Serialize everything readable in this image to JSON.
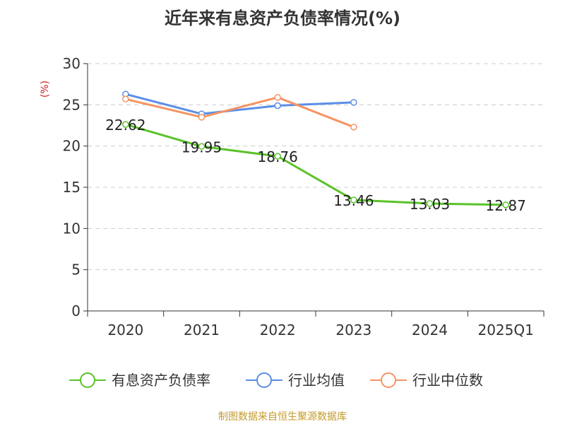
{
  "chart_data": {
    "type": "line",
    "title": "近年来有息资产负债率情况(%)",
    "ylabel": "(%)",
    "xlabel": "",
    "categories": [
      "2020",
      "2021",
      "2022",
      "2023",
      "2024",
      "2025Q1"
    ],
    "ylim": [
      0,
      30
    ],
    "yticks": [
      0,
      5,
      10,
      15,
      20,
      25,
      30
    ],
    "grid": true,
    "legend_position": "bottom",
    "series": [
      {
        "name": "有息资产负债率",
        "color": "#5ac229",
        "values": [
          22.62,
          19.95,
          18.76,
          13.46,
          13.03,
          12.87
        ],
        "labels": [
          "22.62",
          "19.95",
          "18.76",
          "13.46",
          "13.03",
          "12.87"
        ]
      },
      {
        "name": "行业均值",
        "color": "#5b8ee6",
        "values": [
          26.3,
          23.9,
          24.9,
          25.3,
          null,
          null
        ]
      },
      {
        "name": "行业中位数",
        "color": "#f59463",
        "values": [
          25.7,
          23.5,
          25.9,
          22.3,
          null,
          null
        ]
      }
    ]
  },
  "footer": {
    "source": "制图数据来自恒生聚源数据库"
  }
}
